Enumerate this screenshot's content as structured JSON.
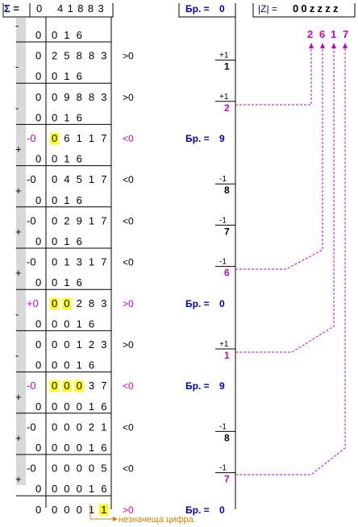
{
  "header": {
    "sigma_label": "Σ =",
    "sigma_sign": "0",
    "sigma_digits": "41883",
    "counter_label": "Бр. =",
    "counter_value": "0",
    "z_label": "|Z| =",
    "z_digits": "00zzzz"
  },
  "quotient_digits": [
    "2",
    "6",
    "1",
    "7"
  ],
  "rows": [
    {
      "pm": "-",
      "sign": "0",
      "digits": "016",
      "hl": 0
    },
    {
      "pm": "",
      "sign": "0",
      "digits": "25883",
      "cmp": ">0",
      "cmp_color": "#000000",
      "step": "+1",
      "step_val": "1",
      "hl": 0
    },
    {
      "pm": "-",
      "sign": "0",
      "digits": "016",
      "hl": 0
    },
    {
      "pm": "",
      "sign": "0",
      "digits": "09883",
      "cmp": ">0",
      "cmp_color": "#000000",
      "step": "+1",
      "step_val": "2",
      "step_color": "#d000d0",
      "hl": 0
    },
    {
      "pm": "-",
      "sign": "0",
      "digits": "016",
      "hl": 0
    },
    {
      "pm": "",
      "sign": "-0",
      "sign_color": "#d000d0",
      "digits": "06117",
      "cmp": "<0",
      "cmp_color": "#d000d0",
      "counter": "Бр. =",
      "counter_val": "9",
      "hl": 1
    },
    {
      "pm": "+",
      "sign": "0",
      "digits": "016",
      "hl": 0
    },
    {
      "pm": "",
      "sign": "-0",
      "digits": "04517",
      "cmp": "<0",
      "cmp_color": "#000000",
      "step": "-1",
      "step_val": "8",
      "hl": 0
    },
    {
      "pm": "+",
      "sign": "0",
      "digits": "016",
      "hl": 0
    },
    {
      "pm": "",
      "sign": "-0",
      "digits": "02917",
      "cmp": "<0",
      "cmp_color": "#000000",
      "step": "-1",
      "step_val": "7",
      "hl": 0
    },
    {
      "pm": "+",
      "sign": "0",
      "digits": "016",
      "hl": 0
    },
    {
      "pm": "",
      "sign": "-0",
      "digits": "01317",
      "cmp": "<0",
      "cmp_color": "#000000",
      "step": "-1",
      "step_val": "6",
      "step_color": "#d000d0",
      "hl": 0
    },
    {
      "pm": "+",
      "sign": "0",
      "digits": "016",
      "hl": 0
    },
    {
      "pm": "",
      "sign": "+0",
      "sign_color": "#d000d0",
      "digits": "00283",
      "cmp": ">0",
      "cmp_color": "#d000d0",
      "counter": "Бр. =",
      "counter_val": "0",
      "hl": 2
    },
    {
      "pm": "-",
      "sign": "0",
      "digits": "0016",
      "hl": 0
    },
    {
      "pm": "",
      "sign": "0",
      "digits": "00123",
      "cmp": ">0",
      "cmp_color": "#000000",
      "step": "+1",
      "step_val": "1",
      "step_color": "#d000d0",
      "hl": 0
    },
    {
      "pm": "-",
      "sign": "0",
      "digits": "0016",
      "hl": 0
    },
    {
      "pm": "",
      "sign": "-0",
      "sign_color": "#d000d0",
      "digits": "00037",
      "cmp": "<0",
      "cmp_color": "#d000d0",
      "counter": "Бр. =",
      "counter_val": "9",
      "hl": 3
    },
    {
      "pm": "+",
      "sign": "0",
      "digits": "00016",
      "hl": 0
    },
    {
      "pm": "",
      "sign": "-0",
      "digits": "00021",
      "cmp": "<0",
      "cmp_color": "#000000",
      "step": "-1",
      "step_val": "8",
      "hl": 0
    },
    {
      "pm": "+",
      "sign": "0",
      "digits": "00016",
      "hl": 0
    },
    {
      "pm": "",
      "sign": "-0",
      "digits": "00005",
      "cmp": "<0",
      "cmp_color": "#000000",
      "step": "-1",
      "step_val": "7",
      "step_color": "#d000d0",
      "hl": 0
    },
    {
      "pm": "+",
      "sign": "0",
      "digits": "00016",
      "hl": 0
    },
    {
      "pm": "",
      "sign": "0",
      "digits": "00011",
      "cmp": ">0",
      "cmp_color": "#d000d0",
      "counter": "Бр. =",
      "counter_val": "0",
      "hl": 0,
      "hl_index": 4
    }
  ],
  "note": "незначеща цифра.",
  "colors": {
    "magenta": "#d000d0",
    "blue": "#0000c0",
    "orange": "#e08000",
    "highlight": "#ffff00",
    "gutter": "#d8d8d8"
  }
}
